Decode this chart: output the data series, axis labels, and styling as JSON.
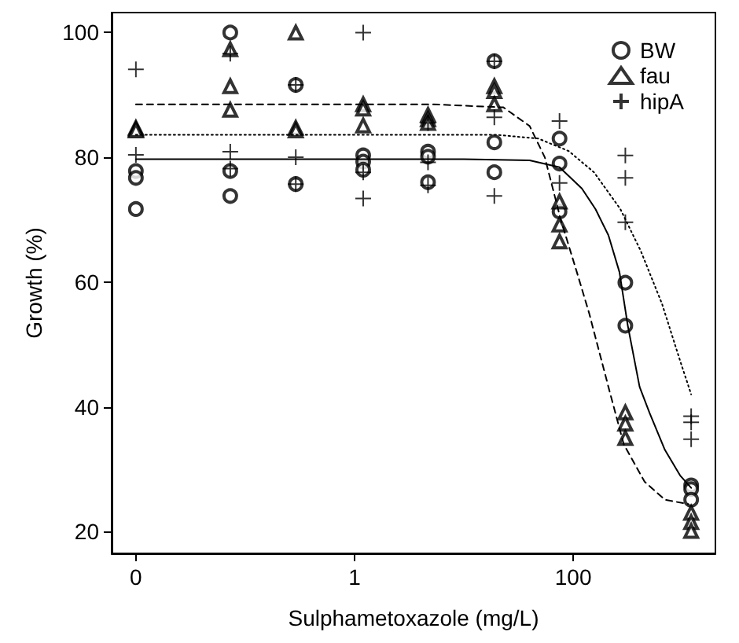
{
  "chart_data": {
    "type": "scatter",
    "xlabel": "Sulphametoxazole (mg/L)",
    "ylabel": "Growth (%)",
    "log": "x",
    "grid": false,
    "legend": "top right",
    "xlim": [
      0.006,
      2000
    ],
    "xticks": [
      {
        "value": 0.01,
        "label": "0"
      },
      1,
      100
    ],
    "ylim": [
      16.5,
      103.2
    ],
    "yticks": [
      20,
      40,
      60,
      80,
      100
    ],
    "series": [
      {
        "name": "BW",
        "marker": "circle",
        "color": "#000000",
        "x": [
          0.01,
          0.01,
          0.01,
          0.073,
          0.073,
          0.073,
          0.29,
          0.29,
          1.2,
          1.2,
          1.2,
          4.7,
          4.7,
          4.7,
          19,
          19,
          19,
          75,
          75,
          75,
          300,
          300,
          1200,
          1200,
          1200
        ],
        "values": [
          77.8,
          76.7,
          71.7,
          100,
          77.8,
          73.8,
          91.6,
          75.7,
          80.3,
          79.3,
          78,
          80.9,
          80.1,
          76,
          95.4,
          82.4,
          77.6,
          83,
          79,
          71.3,
          59.9,
          53,
          27.4,
          26.8,
          25.1
        ]
      },
      {
        "name": "fau",
        "marker": "triangle",
        "color": "#000000",
        "x": [
          0.01,
          0.01,
          0.01,
          0.073,
          0.073,
          0.073,
          0.29,
          0.29,
          0.29,
          1.2,
          1.2,
          1.2,
          4.7,
          4.7,
          4.7,
          19,
          19,
          19,
          75,
          75,
          75,
          300,
          300,
          300,
          1200,
          1200,
          1200
        ],
        "values": [
          84.7,
          84.5,
          84.3,
          97.3,
          91.4,
          87.6,
          100,
          84.7,
          84.3,
          88.5,
          87.8,
          85.1,
          86.8,
          86.1,
          85.5,
          91.4,
          90.6,
          88.5,
          72.9,
          69.2,
          66.5,
          39.1,
          37.3,
          35,
          23,
          21.5,
          20.1
        ]
      },
      {
        "name": "hipA",
        "marker": "cross",
        "color": "#000000",
        "x": [
          0.01,
          0.01,
          0.073,
          0.073,
          0.073,
          0.29,
          0.29,
          0.29,
          1.2,
          1.2,
          1.2,
          4.7,
          4.7,
          4.7,
          19,
          19,
          19,
          75,
          75,
          300,
          300,
          300,
          1200,
          1200,
          1200
        ],
        "values": [
          94.1,
          80.4,
          96.6,
          80.9,
          78.2,
          91.6,
          80,
          75.7,
          100,
          77.6,
          73.4,
          85.5,
          79.2,
          75.5,
          95.4,
          86.4,
          73.8,
          85.8,
          75.9,
          80.3,
          76.7,
          69.6,
          38.5,
          37.5,
          34.8
        ]
      },
      {
        "type": "line",
        "line_style": "solid",
        "marker": "none",
        "color": "#000000",
        "x": [
          0.01,
          10,
          40,
          75,
          120,
          160,
          210,
          265,
          316,
          405,
          500,
          690,
          950,
          1200
        ],
        "values": [
          79.7,
          79.7,
          79.5,
          78.4,
          75,
          71.7,
          67.5,
          61.6,
          53,
          43.2,
          39,
          33.1,
          29,
          27
        ]
      },
      {
        "type": "line",
        "line_style": "dashed",
        "marker": "none",
        "color": "#000000",
        "x": [
          0.01,
          5,
          23,
          40,
          55,
          77,
          108,
          140,
          210,
          290,
          450,
          690,
          1130
        ],
        "values": [
          88.5,
          88.5,
          88,
          85,
          80,
          70,
          61.6,
          55,
          43.2,
          34,
          28,
          25.1,
          24.4
        ]
      },
      {
        "type": "line",
        "line_style": "dotted",
        "marker": "none",
        "color": "#000000",
        "x": [
          0.01,
          20,
          48,
          91,
          155,
          270,
          415,
          650,
          950,
          1200
        ],
        "values": [
          83.6,
          83.6,
          83,
          81,
          77.6,
          71.7,
          65,
          56.5,
          47.4,
          42
        ]
      }
    ]
  }
}
